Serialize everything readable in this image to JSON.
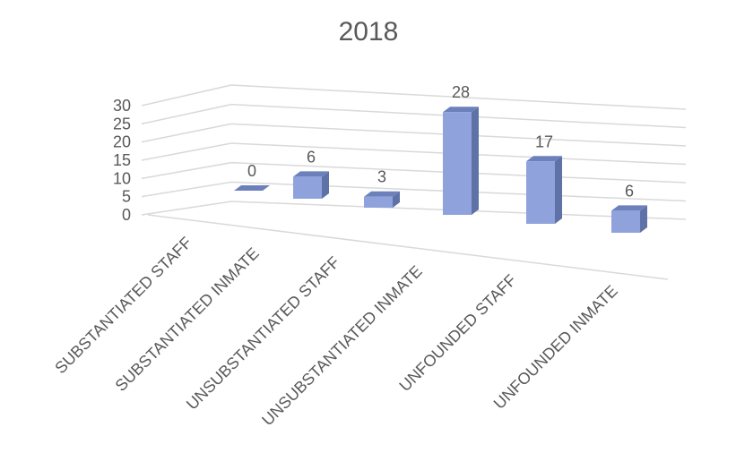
{
  "chart_data": {
    "type": "bar3d",
    "title": "2018",
    "categories": [
      "SUBSTANTIATED STAFF",
      "SUBSTANTIATED INMATE",
      "UNSUBSTANTIATED STAFF",
      "UNSUBSTANTIATED INMATE",
      "UNFOUNDED STAFF",
      "UNFOUNDED INMATE"
    ],
    "values": [
      0,
      6,
      3,
      28,
      17,
      6
    ],
    "color": "#8fa2dc",
    "ylim": [
      0,
      30
    ],
    "yticks": [
      0,
      5,
      10,
      15,
      20,
      25,
      30
    ],
    "grid": true,
    "data_labels": true
  }
}
